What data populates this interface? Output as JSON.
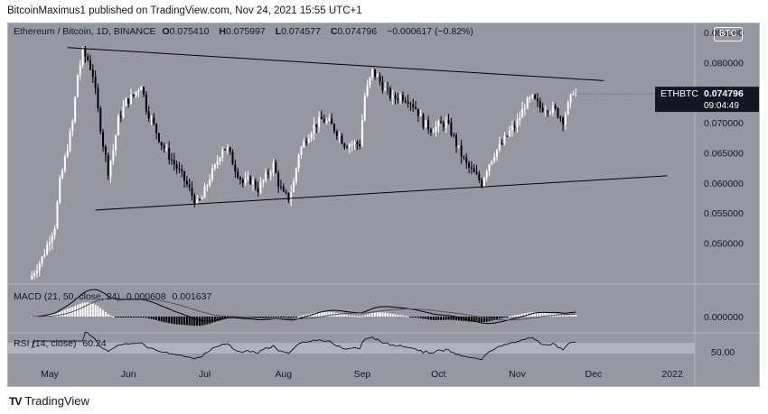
{
  "header": {
    "text": "BitcoinMaximus1 published on TradingView.com, Nov 24, 2021 15:55 UTC+1"
  },
  "symbol": {
    "name": "Ethereum / Bitcoin, 1D, BINANCE",
    "o_label": "O",
    "o": "0.075410",
    "h_label": "H",
    "h": "0.075997",
    "l_label": "L",
    "l": "0.074577",
    "c_label": "C",
    "c": "0.074796",
    "change": "−0.000617 (−0.82%)"
  },
  "currency_badge": "BTC",
  "price_tag": {
    "ticker": "ETHBTC",
    "price": "0.074796",
    "countdown": "09:04:49"
  },
  "macd_legend": {
    "label": "MACD (21, 50, close, 24)",
    "v1": "0.000608",
    "v2": "0.001637"
  },
  "rsi_legend": {
    "label": "RSI (14, close)",
    "value": "60.24"
  },
  "footer": {
    "logo": "TV",
    "brand": "TradingView"
  },
  "colors": {
    "panel": "#9598a1",
    "candle_up": "#ffffff",
    "candle_down": "#000000",
    "line": "#000000",
    "rsi_band": "#b0b3ba"
  },
  "chart_data": {
    "type": "candlestick",
    "title": "Ethereum / Bitcoin, 1D, BINANCE",
    "x_ticks": [
      "May",
      "Jun",
      "Jul",
      "Aug",
      "Sep",
      "Oct",
      "Nov",
      "Dec",
      "2022"
    ],
    "y_ticks": [
      "0.085000",
      "0.080000",
      "0.075000",
      "0.070000",
      "0.065000",
      "0.060000",
      "0.055000",
      "0.050000"
    ],
    "ylim": [
      0.0435,
      0.0865
    ],
    "price_path": [
      [
        "2021-04-23",
        0.044
      ],
      [
        "2021-04-28",
        0.0475
      ],
      [
        "2021-05-03",
        0.053
      ],
      [
        "2021-05-05",
        0.06
      ],
      [
        "2021-05-08",
        0.066
      ],
      [
        "2021-05-10",
        0.07
      ],
      [
        "2021-05-12",
        0.078
      ],
      [
        "2021-05-14",
        0.0815
      ],
      [
        "2021-05-16",
        0.0805
      ],
      [
        "2021-05-18",
        0.078
      ],
      [
        "2021-05-20",
        0.072
      ],
      [
        "2021-05-22",
        0.0665
      ],
      [
        "2021-05-24",
        0.062
      ],
      [
        "2021-05-26",
        0.0655
      ],
      [
        "2021-05-28",
        0.0705
      ],
      [
        "2021-05-31",
        0.0735
      ],
      [
        "2021-06-03",
        0.0745
      ],
      [
        "2021-06-06",
        0.0765
      ],
      [
        "2021-06-08",
        0.0725
      ],
      [
        "2021-06-11",
        0.0695
      ],
      [
        "2021-06-14",
        0.0665
      ],
      [
        "2021-06-17",
        0.0645
      ],
      [
        "2021-06-20",
        0.0625
      ],
      [
        "2021-06-23",
        0.0605
      ],
      [
        "2021-06-26",
        0.058
      ],
      [
        "2021-06-28",
        0.0565
      ],
      [
        "2021-06-30",
        0.0575
      ],
      [
        "2021-07-03",
        0.061
      ],
      [
        "2021-07-05",
        0.0625
      ],
      [
        "2021-07-08",
        0.066
      ],
      [
        "2021-07-10",
        0.0655
      ],
      [
        "2021-07-13",
        0.0625
      ],
      [
        "2021-07-16",
        0.06
      ],
      [
        "2021-07-19",
        0.0605
      ],
      [
        "2021-07-22",
        0.059
      ],
      [
        "2021-07-25",
        0.061
      ],
      [
        "2021-07-28",
        0.063
      ],
      [
        "2021-07-30",
        0.06
      ],
      [
        "2021-08-01",
        0.058
      ],
      [
        "2021-08-03",
        0.0575
      ],
      [
        "2021-08-05",
        0.06
      ],
      [
        "2021-08-07",
        0.065
      ],
      [
        "2021-08-10",
        0.0675
      ],
      [
        "2021-08-13",
        0.0695
      ],
      [
        "2021-08-16",
        0.0705
      ],
      [
        "2021-08-19",
        0.07
      ],
      [
        "2021-08-22",
        0.0685
      ],
      [
        "2021-08-25",
        0.0665
      ],
      [
        "2021-08-28",
        0.0665
      ],
      [
        "2021-08-31",
        0.0665
      ],
      [
        "2021-09-02",
        0.0745
      ],
      [
        "2021-09-05",
        0.0785
      ],
      [
        "2021-09-07",
        0.0775
      ],
      [
        "2021-09-10",
        0.0755
      ],
      [
        "2021-09-13",
        0.074
      ],
      [
        "2021-09-16",
        0.0745
      ],
      [
        "2021-09-19",
        0.074
      ],
      [
        "2021-09-22",
        0.0725
      ],
      [
        "2021-09-25",
        0.07
      ],
      [
        "2021-09-28",
        0.069
      ],
      [
        "2021-10-01",
        0.0695
      ],
      [
        "2021-10-04",
        0.07
      ],
      [
        "2021-10-06",
        0.0685
      ],
      [
        "2021-10-09",
        0.0655
      ],
      [
        "2021-10-12",
        0.063
      ],
      [
        "2021-10-15",
        0.0615
      ],
      [
        "2021-10-18",
        0.06
      ],
      [
        "2021-10-20",
        0.0625
      ],
      [
        "2021-10-23",
        0.065
      ],
      [
        "2021-10-26",
        0.0665
      ],
      [
        "2021-10-29",
        0.0685
      ],
      [
        "2021-11-01",
        0.07
      ],
      [
        "2021-11-04",
        0.073
      ],
      [
        "2021-11-07",
        0.074
      ],
      [
        "2021-11-10",
        0.0725
      ],
      [
        "2021-11-13",
        0.0725
      ],
      [
        "2021-11-16",
        0.072
      ],
      [
        "2021-11-19",
        0.0705
      ],
      [
        "2021-11-22",
        0.074
      ],
      [
        "2021-11-23",
        0.0755
      ],
      [
        "2021-11-24",
        0.0748
      ]
    ],
    "trendlines": [
      {
        "name": "upper",
        "from": [
          "2021-05-08",
          0.0825
        ],
        "to": [
          "2021-12-05",
          0.077
        ]
      },
      {
        "name": "lower",
        "from": [
          "2021-05-19",
          0.0555
        ],
        "to": [
          "2021-12-30",
          0.0612
        ]
      }
    ]
  }
}
